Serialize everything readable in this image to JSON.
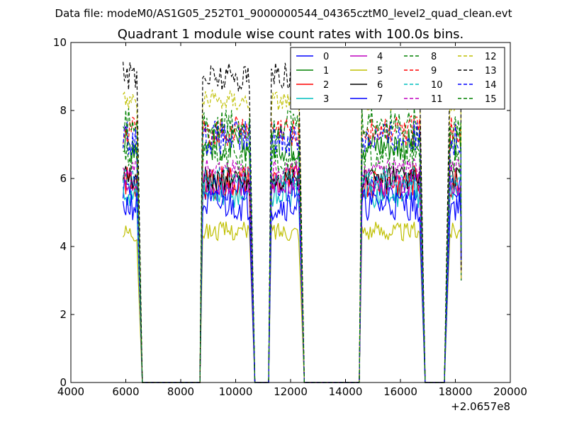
{
  "figure": {
    "suptitle": "Data file: modeM0/AS1G05_252T01_9000000544_04365cztM0_level2_quad_clean.evt"
  },
  "chart_data": {
    "type": "line",
    "title": "Quadrant 1 module wise count rates with 100.0s bins.",
    "xlabel": "",
    "ylabel": "",
    "x_offset_label": "+2.0657e8",
    "xlim": [
      4000,
      20000
    ],
    "ylim": [
      0,
      10
    ],
    "xticks": [
      4000,
      6000,
      8000,
      10000,
      12000,
      14000,
      16000,
      18000,
      20000
    ],
    "xtick_labels": [
      "4000",
      "6000",
      "8000",
      "10000",
      "12000",
      "14000",
      "16000",
      "18000",
      "20000"
    ],
    "yticks": [
      0,
      2,
      4,
      6,
      8,
      10
    ],
    "ytick_labels": [
      "0",
      "2",
      "4",
      "6",
      "8",
      "10"
    ],
    "grid": false,
    "legend_location": "upper-right",
    "legend_columns": 4,
    "segments": [
      {
        "start": 5900,
        "end": 6400,
        "edge_down": 6600,
        "pre_zero": null
      },
      {
        "start": 8800,
        "end": 10500,
        "edge_down": 10700,
        "pre_zero": 8700
      },
      {
        "start": 11300,
        "end": 12300,
        "edge_down": 12500,
        "pre_zero": 11200
      },
      {
        "start": 14600,
        "end": 16700,
        "edge_down": 16900,
        "pre_zero": 14500
      },
      {
        "start": 17800,
        "end": 18200,
        "edge_down": null,
        "pre_zero": 17600
      }
    ],
    "series": [
      {
        "name": "0",
        "color": "#0000ff",
        "dash": false,
        "level": 5.75
      },
      {
        "name": "1",
        "color": "#008000",
        "dash": false,
        "level": 7.0
      },
      {
        "name": "2",
        "color": "#ff0000",
        "dash": false,
        "level": 5.9
      },
      {
        "name": "3",
        "color": "#00bfbf",
        "dash": false,
        "level": 5.55
      },
      {
        "name": "4",
        "color": "#bf00bf",
        "dash": false,
        "level": 5.8
      },
      {
        "name": "5",
        "color": "#bfbf00",
        "dash": false,
        "level": 4.45
      },
      {
        "name": "6",
        "color": "#000000",
        "dash": false,
        "level": 6.0
      },
      {
        "name": "7",
        "color": "#0000ff",
        "dash": false,
        "level": 5.2
      },
      {
        "name": "8",
        "color": "#008000",
        "dash": true,
        "level": 6.6
      },
      {
        "name": "9",
        "color": "#ff0000",
        "dash": true,
        "level": 7.4
      },
      {
        "name": "10",
        "color": "#00bfbf",
        "dash": true,
        "level": 6.0
      },
      {
        "name": "11",
        "color": "#bf00bf",
        "dash": true,
        "level": 6.3
      },
      {
        "name": "12",
        "color": "#bfbf00",
        "dash": true,
        "level": 8.3
      },
      {
        "name": "13",
        "color": "#000000",
        "dash": true,
        "level": 9.0
      },
      {
        "name": "14",
        "color": "#0000ff",
        "dash": true,
        "level": 7.2
      },
      {
        "name": "15",
        "color": "#008000",
        "dash": true,
        "level": 7.6
      }
    ]
  }
}
